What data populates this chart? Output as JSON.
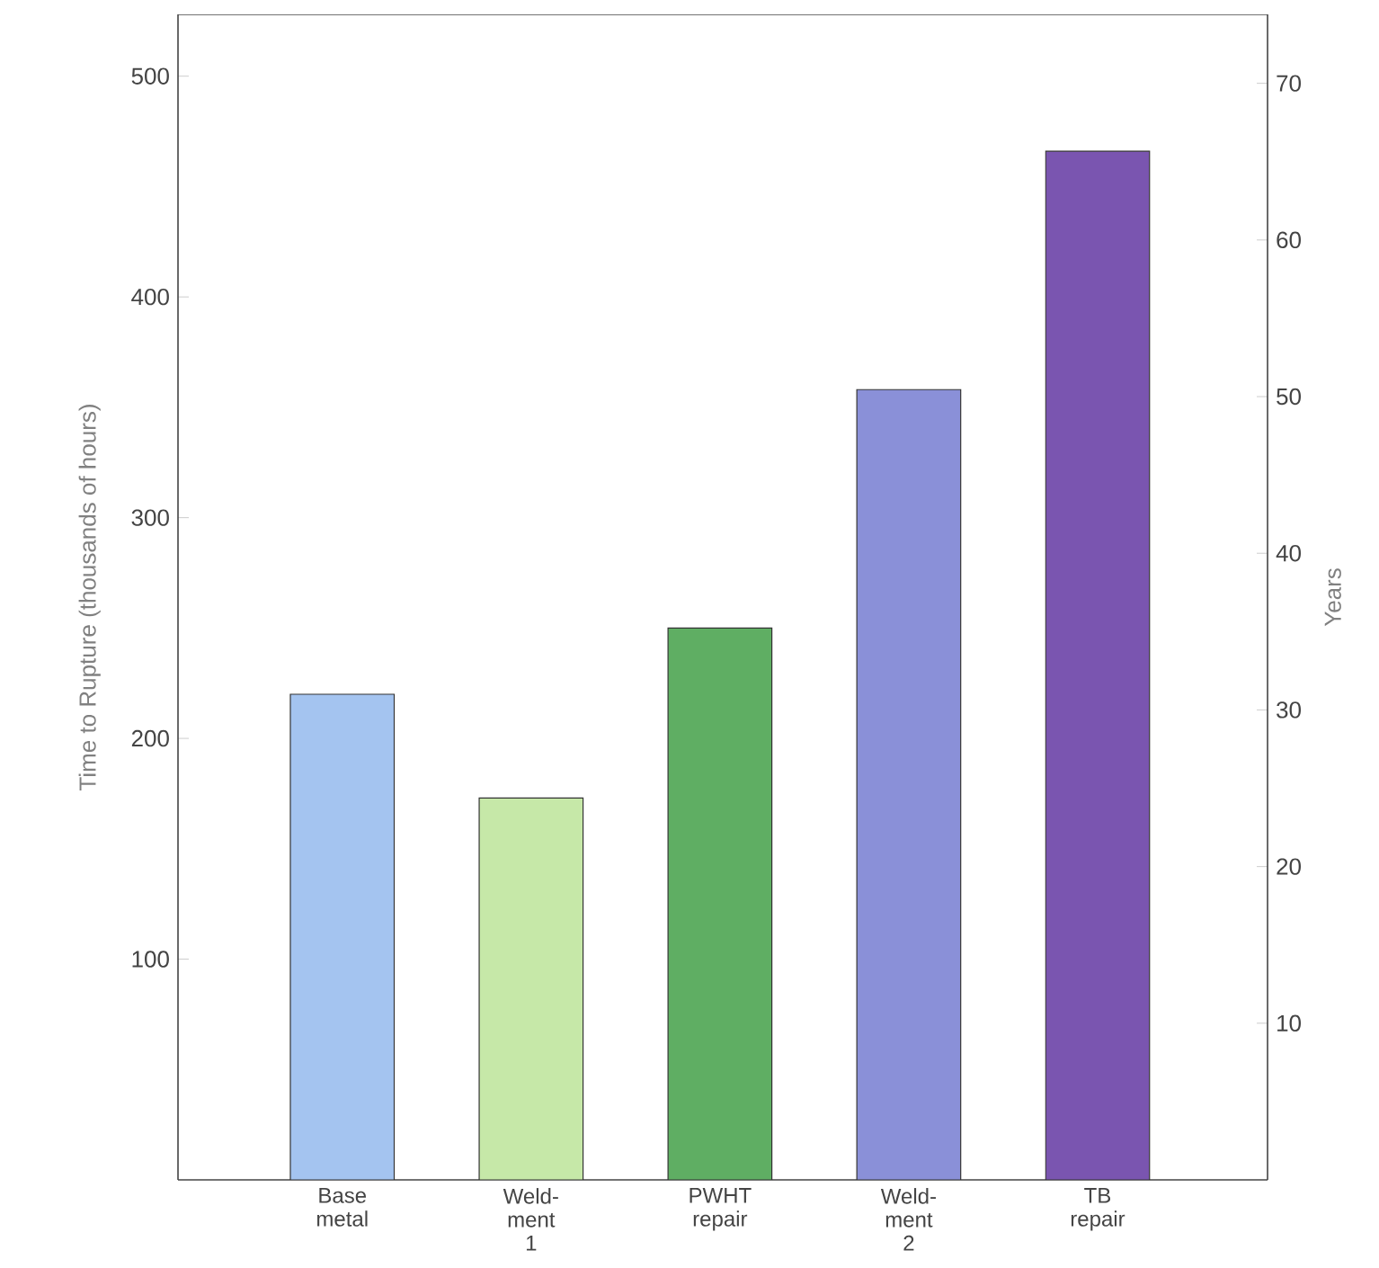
{
  "chart_data": {
    "type": "bar",
    "ylabel": "Time to Rupture (thousands of hours)",
    "y2label": "Years",
    "categories": [
      "Base metal",
      "Weld-ment 1",
      "PWHT repair",
      "Weld-ment 2",
      "TB repair"
    ],
    "values": [
      220,
      173,
      250,
      358,
      466
    ],
    "colors": [
      "#a4c4f0",
      "#c6e8a8",
      "#5fae63",
      "#8a90d8",
      "#7a55b0"
    ],
    "ylim": [
      0,
      528
    ],
    "yticks": [
      100,
      200,
      300,
      400,
      500
    ],
    "y2lim": [
      0,
      74.4
    ],
    "y2ticks": [
      10,
      20,
      30,
      40,
      50,
      60,
      70
    ],
    "grid": false
  }
}
